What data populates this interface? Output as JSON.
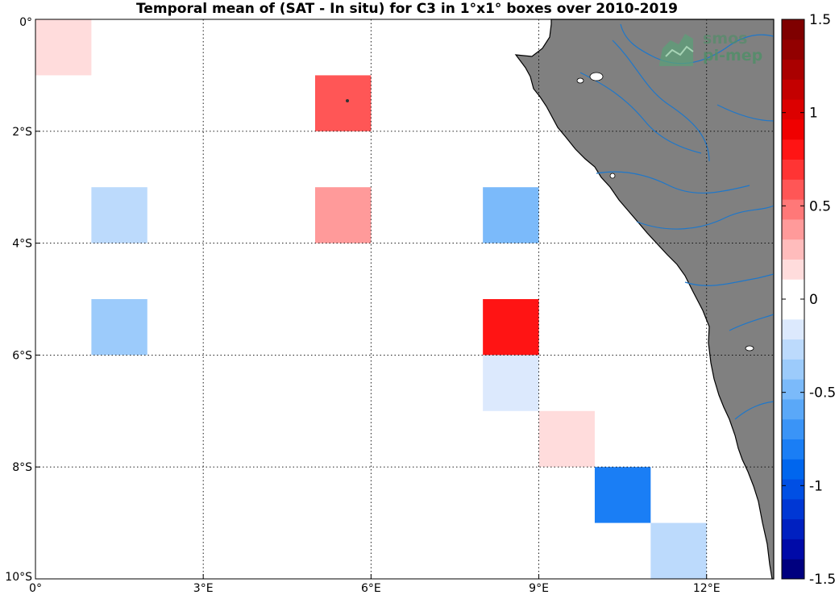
{
  "title": "Temporal mean of (SAT - In situ) for C3 in 1°x1° boxes over 2010-2019",
  "logo": {
    "line1": "smos",
    "line2": "pi-mep"
  },
  "map": {
    "lon_range": [
      0,
      13.2
    ],
    "lat_range": [
      0,
      -10
    ],
    "x_ticks": [
      {
        "value": 0,
        "label": "0°"
      },
      {
        "value": 3,
        "label": "3°E"
      },
      {
        "value": 6,
        "label": "6°E"
      },
      {
        "value": 9,
        "label": "9°E"
      },
      {
        "value": 12,
        "label": "12°E"
      }
    ],
    "y_ticks": [
      {
        "value": 0,
        "label": "0°"
      },
      {
        "value": -2,
        "label": "2°S"
      },
      {
        "value": -4,
        "label": "4°S"
      },
      {
        "value": -6,
        "label": "6°S"
      },
      {
        "value": -8,
        "label": "8°S"
      },
      {
        "value": -10,
        "label": "10°S"
      }
    ],
    "grid": true,
    "ocean_color": "#ffffff",
    "land_color": "#808080",
    "river_color": "#1f77c9",
    "boxes": [
      {
        "lon": 0,
        "lat": -1,
        "value": 0.15
      },
      {
        "lon": 5,
        "lat": -2,
        "value": 0.6
      },
      {
        "lon": 1,
        "lat": -4,
        "value": -0.25
      },
      {
        "lon": 5,
        "lat": -4,
        "value": 0.4
      },
      {
        "lon": 8,
        "lat": -4,
        "value": -0.45
      },
      {
        "lon": 1,
        "lat": -6,
        "value": -0.35
      },
      {
        "lon": 8,
        "lat": -6,
        "value": 0.85
      },
      {
        "lon": 8,
        "lat": -7,
        "value": -0.15
      },
      {
        "lon": 9,
        "lat": -8,
        "value": 0.15
      },
      {
        "lon": 10,
        "lat": -9,
        "value": -0.8
      },
      {
        "lon": 11,
        "lat": -10,
        "value": -0.25
      }
    ]
  },
  "colorbar": {
    "range": [
      -1.5,
      1.5
    ],
    "ticks": [
      {
        "value": 1.5,
        "label": "1.5"
      },
      {
        "value": 1,
        "label": "1"
      },
      {
        "value": 0.5,
        "label": "0.5"
      },
      {
        "value": 0,
        "label": "0"
      },
      {
        "value": -0.5,
        "label": "-0.5"
      },
      {
        "value": -1,
        "label": "-1"
      },
      {
        "value": -1.5,
        "label": "-1.5"
      }
    ],
    "colors_bottom_to_top": [
      "#00007f",
      "#000aa8",
      "#0020c0",
      "#0037d4",
      "#004fe4",
      "#0066ee",
      "#1a7ef5",
      "#3a94f7",
      "#5aa8f8",
      "#7bbafa",
      "#9ccbfb",
      "#bcdafc",
      "#dce9fd",
      "#ffffff",
      "#ffffff",
      "#ffdcdc",
      "#ffbcbc",
      "#ff9a9a",
      "#ff7878",
      "#ff5656",
      "#ff3434",
      "#ff1414",
      "#f00000",
      "#dc0000",
      "#c40000",
      "#aa0000",
      "#920000",
      "#7f0000"
    ]
  }
}
